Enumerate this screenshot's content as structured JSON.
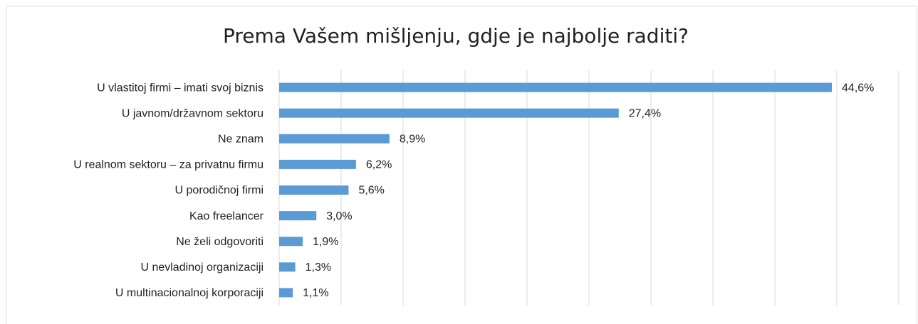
{
  "chart_data": {
    "type": "bar",
    "orientation": "horizontal",
    "title": "Prema Vašem mišljenju, gdje je najbolje raditi?",
    "categories": [
      "U vlastitoj firmi – imati svoj biznis",
      "U javnom/državnom sektoru",
      "Ne znam",
      "U realnom sektoru – za privatnu firmu",
      "U porodičnoj firmi",
      "Kao freelancer",
      "Ne želi odgovoriti",
      "U nevladinoj organizaciji",
      "U multinacionalnoj korporaciji"
    ],
    "values": [
      44.6,
      27.4,
      8.9,
      6.2,
      5.6,
      3.0,
      1.9,
      1.3,
      1.1
    ],
    "value_labels": [
      "44,6%",
      "27,4%",
      "8,9%",
      "6,2%",
      "5,6%",
      "3,0%",
      "1,9%",
      "1,3%",
      "1,1%"
    ],
    "color": "#5b9bd5",
    "xlim": [
      0,
      50
    ],
    "xticks": [
      0,
      5,
      10,
      15,
      20,
      25,
      30,
      35,
      40,
      45,
      50
    ],
    "grid": true
  }
}
